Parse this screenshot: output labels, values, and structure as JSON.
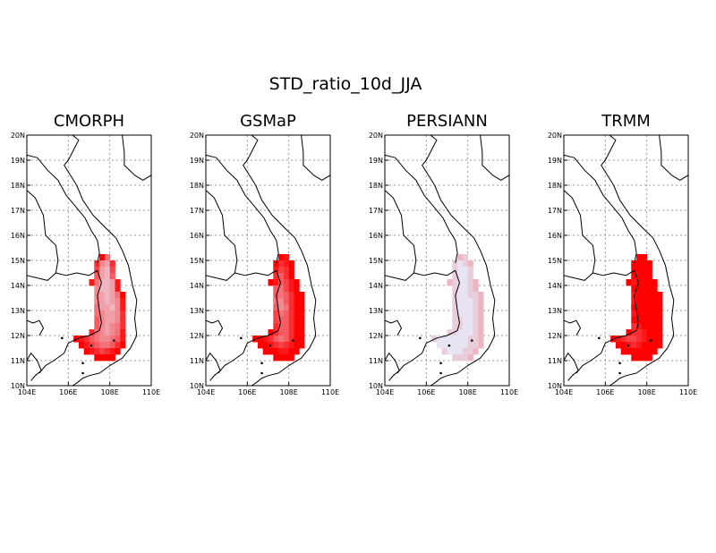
{
  "figure": {
    "title": "STD_ratio_10d_JJA"
  },
  "map": {
    "lon_range": [
      104,
      110
    ],
    "lat_range": [
      10,
      20
    ],
    "x_ticks": [
      104,
      106,
      108,
      110
    ],
    "x_tick_labels": [
      "104E",
      "106E",
      "108E",
      "110E"
    ],
    "y_ticks": [
      10,
      11,
      12,
      13,
      14,
      15,
      16,
      17,
      18,
      19,
      20
    ],
    "y_tick_labels": [
      "10N",
      "11N",
      "12N",
      "13N",
      "14N",
      "15N",
      "16N",
      "17N",
      "18N",
      "19N",
      "20N"
    ],
    "grid_x": [
      106,
      108
    ],
    "grid_y": [
      11,
      12,
      13,
      14,
      15,
      16,
      17,
      18,
      19
    ]
  },
  "colors": {
    "red": "#ff0000",
    "low": "#e8e4f2",
    "frame": "#000000",
    "grid": "#9a9a9a"
  },
  "chart_data": {
    "type": "heatmap",
    "grid_resolution_deg": 0.25,
    "value_meaning": "shade index 0 (pale lavender) to 10 (full red)",
    "domain_rows": [
      {
        "lat": 15.125,
        "lons": [
          107.625,
          107.875
        ]
      },
      {
        "lat": 14.875,
        "lons": [
          107.375,
          107.625,
          107.875,
          108.125
        ]
      },
      {
        "lat": 14.625,
        "lons": [
          107.375,
          107.625,
          107.875,
          108.125
        ]
      },
      {
        "lat": 14.375,
        "lons": [
          107.375,
          107.625,
          107.875,
          108.125
        ]
      },
      {
        "lat": 14.125,
        "lons": [
          107.125,
          107.375,
          107.625,
          107.875,
          108.125,
          108.375
        ]
      },
      {
        "lat": 13.875,
        "lons": [
          107.375,
          107.625,
          107.875,
          108.125,
          108.375
        ]
      },
      {
        "lat": 13.625,
        "lons": [
          107.375,
          107.625,
          107.875,
          108.125,
          108.375,
          108.625
        ]
      },
      {
        "lat": 13.375,
        "lons": [
          107.375,
          107.625,
          107.875,
          108.125,
          108.375,
          108.625
        ]
      },
      {
        "lat": 13.125,
        "lons": [
          107.375,
          107.625,
          107.875,
          108.125,
          108.375,
          108.625
        ]
      },
      {
        "lat": 12.875,
        "lons": [
          107.375,
          107.625,
          107.875,
          108.125,
          108.375,
          108.625
        ]
      },
      {
        "lat": 12.625,
        "lons": [
          107.375,
          107.625,
          107.875,
          108.125,
          108.375,
          108.625
        ]
      },
      {
        "lat": 12.375,
        "lons": [
          107.375,
          107.625,
          107.875,
          108.125,
          108.375,
          108.625
        ]
      },
      {
        "lat": 12.125,
        "lons": [
          107.125,
          107.375,
          107.625,
          107.875,
          108.125,
          108.375,
          108.625
        ]
      },
      {
        "lat": 11.875,
        "lons": [
          106.375,
          106.625,
          106.875,
          107.125,
          107.375,
          107.625,
          107.875,
          108.125,
          108.375,
          108.625
        ]
      },
      {
        "lat": 11.625,
        "lons": [
          106.625,
          106.875,
          107.125,
          107.375,
          107.625,
          107.875,
          108.125,
          108.375,
          108.625
        ]
      },
      {
        "lat": 11.375,
        "lons": [
          106.875,
          107.125,
          107.375,
          107.625,
          107.875,
          108.125,
          108.375
        ]
      },
      {
        "lat": 11.125,
        "lons": [
          107.375,
          107.625,
          107.875,
          108.125
        ]
      }
    ],
    "panels": [
      {
        "name": "CMORPH",
        "shades": [
          [
            10,
            5
          ],
          [
            8,
            4,
            3,
            8
          ],
          [
            7,
            3,
            2,
            7
          ],
          [
            6,
            3,
            2,
            6
          ],
          [
            9,
            5,
            2,
            2,
            3,
            9
          ],
          [
            4,
            2,
            2,
            3,
            9
          ],
          [
            4,
            3,
            2,
            3,
            5,
            10
          ],
          [
            4,
            3,
            2,
            3,
            4,
            9
          ],
          [
            5,
            3,
            3,
            2,
            4,
            9
          ],
          [
            5,
            4,
            3,
            3,
            4,
            8
          ],
          [
            6,
            4,
            3,
            3,
            4,
            8
          ],
          [
            6,
            4,
            3,
            4,
            5,
            8
          ],
          [
            8,
            5,
            4,
            3,
            4,
            5,
            9
          ],
          [
            10,
            9,
            8,
            6,
            5,
            4,
            4,
            5,
            6,
            9
          ],
          [
            10,
            9,
            7,
            6,
            5,
            5,
            6,
            8,
            10
          ],
          [
            10,
            9,
            8,
            7,
            8,
            9,
            10
          ],
          [
            10,
            10,
            10,
            10
          ]
        ]
      },
      {
        "name": "GSMaP",
        "shades": [
          [
            10,
            9
          ],
          [
            10,
            8,
            9,
            10
          ],
          [
            9,
            7,
            8,
            10
          ],
          [
            8,
            6,
            8,
            10
          ],
          [
            10,
            9,
            6,
            7,
            9,
            10
          ],
          [
            6,
            5,
            7,
            9,
            10
          ],
          [
            6,
            5,
            6,
            8,
            10,
            10
          ],
          [
            5,
            4,
            6,
            8,
            10,
            10
          ],
          [
            6,
            4,
            5,
            8,
            10,
            10
          ],
          [
            7,
            5,
            6,
            8,
            10,
            10
          ],
          [
            7,
            6,
            6,
            8,
            10,
            10
          ],
          [
            8,
            6,
            6,
            8,
            10,
            10
          ],
          [
            10,
            8,
            6,
            6,
            8,
            10,
            10
          ],
          [
            10,
            10,
            9,
            8,
            6,
            5,
            6,
            8,
            10,
            10
          ],
          [
            10,
            10,
            9,
            8,
            7,
            8,
            9,
            10,
            10
          ],
          [
            10,
            10,
            10,
            9,
            9,
            10,
            10
          ],
          [
            10,
            10,
            10,
            10
          ]
        ]
      },
      {
        "name": "PERSIANN",
        "shades": [
          [
            2,
            1
          ],
          [
            1,
            0,
            1,
            2
          ],
          [
            1,
            0,
            0,
            1
          ],
          [
            1,
            0,
            0,
            1
          ],
          [
            2,
            1,
            0,
            0,
            1,
            2
          ],
          [
            1,
            0,
            0,
            1,
            2
          ],
          [
            1,
            0,
            0,
            1,
            1,
            2
          ],
          [
            1,
            0,
            0,
            0,
            1,
            2
          ],
          [
            1,
            0,
            0,
            0,
            1,
            2
          ],
          [
            1,
            0,
            0,
            0,
            1,
            2
          ],
          [
            1,
            1,
            0,
            0,
            1,
            2
          ],
          [
            1,
            1,
            0,
            0,
            1,
            2
          ],
          [
            1,
            1,
            0,
            0,
            0,
            1,
            2
          ],
          [
            1,
            0,
            0,
            0,
            0,
            0,
            0,
            1,
            1,
            2
          ],
          [
            0,
            0,
            0,
            0,
            0,
            0,
            1,
            1,
            2
          ],
          [
            1,
            0,
            0,
            0,
            1,
            1,
            2
          ],
          [
            1,
            1,
            1,
            2
          ]
        ]
      },
      {
        "name": "TRMM",
        "shades": [
          [
            10,
            10
          ],
          [
            10,
            10,
            10,
            10
          ],
          [
            10,
            10,
            10,
            10
          ],
          [
            10,
            10,
            10,
            10
          ],
          [
            10,
            9,
            10,
            10,
            10,
            10
          ],
          [
            10,
            10,
            10,
            10,
            10
          ],
          [
            9,
            10,
            10,
            10,
            10,
            10
          ],
          [
            9,
            10,
            10,
            10,
            10,
            10
          ],
          [
            10,
            10,
            10,
            10,
            10,
            10
          ],
          [
            9,
            10,
            10,
            10,
            10,
            10
          ],
          [
            10,
            10,
            10,
            10,
            10,
            10
          ],
          [
            8,
            9,
            10,
            10,
            10,
            10
          ],
          [
            10,
            8,
            8,
            9,
            10,
            10,
            10
          ],
          [
            10,
            9,
            8,
            7,
            7,
            8,
            9,
            10,
            10,
            10
          ],
          [
            10,
            10,
            9,
            8,
            9,
            10,
            10,
            10,
            10
          ],
          [
            10,
            10,
            10,
            10,
            10,
            10,
            10
          ],
          [
            10,
            10,
            10,
            10
          ]
        ]
      }
    ]
  }
}
